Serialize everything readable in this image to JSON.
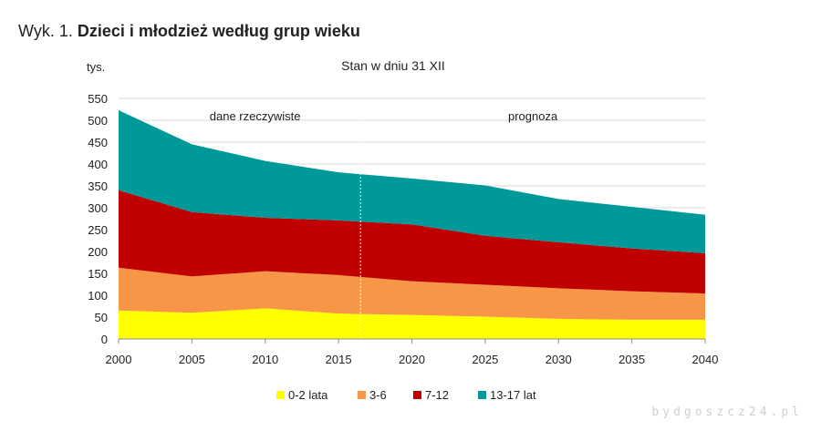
{
  "figure": {
    "prefix": "Wyk. 1.",
    "title": "Dzieci i młodzież według grup wieku"
  },
  "watermark": "bydgoszcz24.pl",
  "chart_data": {
    "type": "area",
    "stacked": true,
    "subtitle": "Stan w dniu 31 XII",
    "ylabel": "tys.",
    "xlabel": "",
    "x": [
      2000,
      2005,
      2010,
      2015,
      2020,
      2025,
      2030,
      2035,
      2040
    ],
    "x_ticks": [
      "2000",
      "2005",
      "2010",
      "2015",
      "2020",
      "2025",
      "2030",
      "2035",
      "2040"
    ],
    "ylim": [
      0,
      550
    ],
    "y_ticks": [
      "0",
      "50",
      "100",
      "150",
      "200",
      "250",
      "300",
      "350",
      "400",
      "450",
      "500",
      "550"
    ],
    "grid": true,
    "legend_position": "bottom",
    "series": [
      {
        "name": "0-2 lata",
        "color": "#ffff00",
        "values": [
          65,
          60,
          70,
          58,
          55,
          51,
          46,
          44,
          44
        ]
      },
      {
        "name": "3-6",
        "color": "#f79646",
        "values": [
          98,
          83,
          85,
          88,
          77,
          73,
          70,
          65,
          60
        ]
      },
      {
        "name": "7-12",
        "color": "#c00000",
        "values": [
          177,
          147,
          122,
          125,
          130,
          112,
          105,
          98,
          92
        ]
      },
      {
        "name": "13-17 lat",
        "color": "#009999",
        "values": [
          183,
          155,
          130,
          110,
          105,
          115,
          99,
          95,
          88
        ]
      }
    ],
    "annotations": {
      "divider_x": 2016.5,
      "actual_label": "dane rzeczywiste",
      "forecast_label": "prognoza"
    }
  }
}
